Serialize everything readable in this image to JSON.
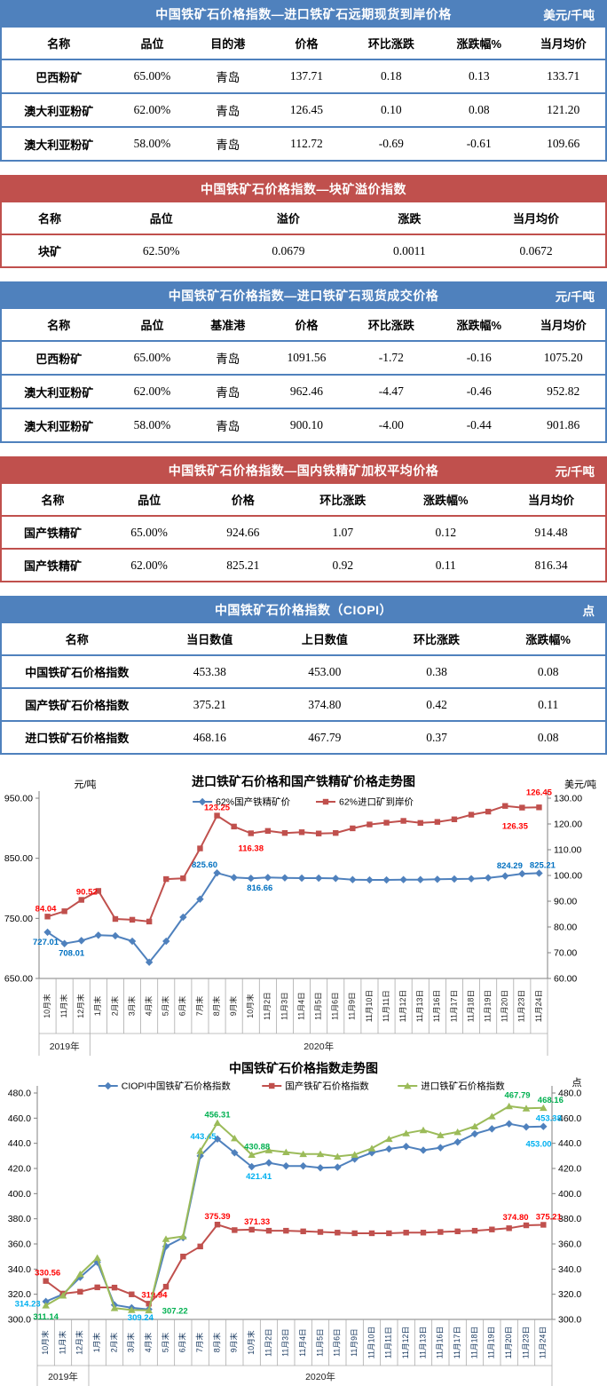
{
  "accent_colors": {
    "blue": "#4F81BD",
    "red": "#C0504D",
    "green": "#9BBB59"
  },
  "tables": [
    {
      "name": "table-import-seaborne-price",
      "accent": "#4F81BD",
      "title": "中国铁矿石价格指数—进口铁矿石远期现货到岸价格",
      "unit": "美元/千吨",
      "headers": [
        "名称",
        "品位",
        "目的港",
        "价格",
        "环比涨跌",
        "涨跌幅%",
        "当月均价"
      ],
      "rows": [
        [
          "巴西粉矿",
          "65.00%",
          "青岛",
          "137.71",
          "0.18",
          "0.13",
          "133.71"
        ],
        [
          "澳大利亚粉矿",
          "62.00%",
          "青岛",
          "126.45",
          "0.10",
          "0.08",
          "121.20"
        ],
        [
          "澳大利亚粉矿",
          "58.00%",
          "青岛",
          "112.72",
          "-0.69",
          "-0.61",
          "109.66"
        ]
      ]
    },
    {
      "name": "table-lump-premium-index",
      "accent": "#C0504D",
      "title": "中国铁矿石价格指数—块矿溢价指数",
      "unit": "",
      "headers": [
        "名称",
        "品位",
        "溢价",
        "涨跌",
        "当月均价"
      ],
      "rows": [
        [
          "块矿",
          "62.50%",
          "0.0679",
          "0.0011",
          "0.0672"
        ]
      ]
    },
    {
      "name": "table-import-spot-price",
      "accent": "#4F81BD",
      "title": "中国铁矿石价格指数—进口铁矿石现货成交价格",
      "unit": "元/千吨",
      "headers": [
        "名称",
        "品位",
        "基准港",
        "价格",
        "环比涨跌",
        "涨跌幅%",
        "当月均价"
      ],
      "rows": [
        [
          "巴西粉矿",
          "65.00%",
          "青岛",
          "1091.56",
          "-1.72",
          "-0.16",
          "1075.20"
        ],
        [
          "澳大利亚粉矿",
          "62.00%",
          "青岛",
          "962.46",
          "-4.47",
          "-0.46",
          "952.82"
        ],
        [
          "澳大利亚粉矿",
          "58.00%",
          "青岛",
          "900.10",
          "-4.00",
          "-0.44",
          "901.86"
        ]
      ]
    },
    {
      "name": "table-domestic-concentrate-price",
      "accent": "#C0504D",
      "title": "中国铁矿石价格指数—国内铁精矿加权平均价格",
      "unit": "元/千吨",
      "headers": [
        "名称",
        "品位",
        "价格",
        "环比涨跌",
        "涨跌幅%",
        "当月均价"
      ],
      "rows": [
        [
          "国产铁精矿",
          "65.00%",
          "924.66",
          "1.07",
          "0.12",
          "914.48"
        ],
        [
          "国产铁精矿",
          "62.00%",
          "825.21",
          "0.92",
          "0.11",
          "816.34"
        ]
      ]
    },
    {
      "name": "table-ciopi-index",
      "accent": "#4F81BD",
      "title": "中国铁矿石价格指数（CIOPI）",
      "unit": "点",
      "headers": [
        "名称",
        "当日数值",
        "上日数值",
        "环比涨跌",
        "涨跌幅%"
      ],
      "rows": [
        [
          "中国铁矿石价格指数",
          "453.38",
          "453.00",
          "0.38",
          "0.08"
        ],
        [
          "国产铁矿石价格指数",
          "375.21",
          "374.80",
          "0.42",
          "0.11"
        ],
        [
          "进口铁矿石价格指数",
          "468.16",
          "467.79",
          "0.37",
          "0.08"
        ]
      ]
    }
  ],
  "chart_data": [
    {
      "type": "line",
      "name": "chart-import-vs-domestic-price-trend",
      "title": "进口铁矿石价格和国产铁精矿价格走势图",
      "left_axis_label": "元/吨",
      "right_axis_label": "美元/吨",
      "left_ylim": [
        650,
        950
      ],
      "right_ylim": [
        60,
        130
      ],
      "left_ticks": [
        "950.00",
        "850.00",
        "750.00",
        "650.00"
      ],
      "right_ticks": [
        "130.00",
        "120.00",
        "110.00",
        "100.00",
        "90.00",
        "80.00",
        "70.00",
        "60.00"
      ],
      "grid": false,
      "legend_position": "top",
      "categories": [
        "10月末",
        "11月末",
        "12月末",
        "1月末",
        "2月末",
        "3月末",
        "4月末",
        "5月末",
        "6月末",
        "7月末",
        "8月末",
        "9月末",
        "10月末",
        "11月2日",
        "11月3日",
        "11月4日",
        "11月5日",
        "11月6日",
        "11月9日",
        "11月10日",
        "11月11日",
        "11月12日",
        "11月13日",
        "11月16日",
        "11月17日",
        "11月18日",
        "11月19日",
        "11月20日",
        "11月23日",
        "11月24日"
      ],
      "year_groups": [
        {
          "label": "2019年",
          "span": 3
        },
        {
          "label": "2020年",
          "span": 27
        }
      ],
      "series": [
        {
          "name": "62%国产铁精矿价",
          "color": "#4F81BD",
          "marker": "diamond",
          "axis": "left",
          "label_color": "#0070C0",
          "values": [
            727.01,
            708.01,
            713,
            722,
            721,
            712,
            677,
            712,
            752,
            782,
            825.6,
            818,
            816.66,
            818,
            817.5,
            817,
            817,
            816.5,
            814.5,
            814,
            814,
            814.5,
            814.5,
            815,
            815.5,
            816,
            817.5,
            820.5,
            824.29,
            825.21
          ],
          "point_labels": [
            {
              "i": 0,
              "v": "727.01",
              "pos": "below",
              "dx": -2
            },
            {
              "i": 1,
              "v": "708.01",
              "pos": "below",
              "dx": 8
            },
            {
              "i": 10,
              "v": "825.60",
              "pos": "above",
              "dx": -14
            },
            {
              "i": 12,
              "v": "816.66",
              "pos": "below",
              "dx": 10
            },
            {
              "i": 28,
              "v": "824.29",
              "pos": "above",
              "dx": -14
            },
            {
              "i": 29,
              "v": "825.21",
              "pos": "above",
              "dx": 4
            }
          ]
        },
        {
          "name": "62%进口矿到岸价",
          "color": "#C0504D",
          "marker": "square",
          "axis": "right",
          "label_color": "#FF0000",
          "values": [
            84.04,
            86.1,
            90.52,
            94.0,
            83.1,
            82.8,
            82.1,
            98.6,
            98.9,
            110.5,
            123.25,
            119.0,
            116.38,
            117.3,
            116.5,
            116.8,
            116.3,
            116.5,
            118.3,
            119.8,
            120.5,
            121.2,
            120.4,
            120.8,
            121.8,
            123.6,
            124.8,
            127.0,
            126.35,
            126.45
          ],
          "point_labels": [
            {
              "i": 0,
              "v": "84.04",
              "pos": "above",
              "dx": -2
            },
            {
              "i": 2,
              "v": "90.52",
              "pos": "above",
              "dx": 6
            },
            {
              "i": 10,
              "v": "123.25",
              "pos": "above"
            },
            {
              "i": 12,
              "v": "116.38",
              "pos": "below",
              "dy": 6
            },
            {
              "i": 28,
              "v": "126.35",
              "pos": "below",
              "dx": -8,
              "dy": 10
            },
            {
              "i": 29,
              "v": "126.45",
              "pos": "above",
              "dy": -8
            }
          ]
        }
      ]
    },
    {
      "type": "line",
      "name": "chart-ciopi-trend",
      "title": "中国铁矿石价格指数走势图",
      "left_axis_label": "",
      "right_axis_label": "点",
      "left_ylim": [
        300,
        480
      ],
      "right_ylim": [
        300,
        480
      ],
      "left_ticks": [
        "480.0",
        "460.0",
        "440.0",
        "420.0",
        "400.0",
        "380.0",
        "360.0",
        "340.0",
        "320.0",
        "300.0"
      ],
      "right_ticks": [
        "480.0",
        "460.0",
        "440.0",
        "420.0",
        "400.0",
        "380.0",
        "360.0",
        "340.0",
        "320.0",
        "300.0"
      ],
      "grid": false,
      "legend_position": "top",
      "categories": [
        "10月末",
        "11月末",
        "12月末",
        "1月末",
        "2月末",
        "3月末",
        "4月末",
        "5月末",
        "6月末",
        "7月末",
        "8月末",
        "9月末",
        "10月末",
        "11月2日",
        "11月3日",
        "11月4日",
        "11月5日",
        "11月6日",
        "11月9日",
        "11月10日",
        "11月11日",
        "11月12日",
        "11月13日",
        "11月16日",
        "11月17日",
        "11月18日",
        "11月19日",
        "11月20日",
        "11月23日",
        "11月24日"
      ],
      "year_groups": [
        {
          "label": "2019年",
          "span": 3
        },
        {
          "label": "2020年",
          "span": 27
        }
      ],
      "series": [
        {
          "name": "CIOPI中国铁矿石价格指数",
          "color": "#4F81BD",
          "marker": "diamond",
          "axis": "left",
          "label_color": "#00B0F0",
          "values": [
            314.23,
            320.0,
            333.5,
            345.5,
            311.5,
            309.24,
            308.0,
            358.0,
            365.0,
            430.0,
            443.45,
            432.5,
            421.41,
            424.5,
            422.0,
            422.0,
            420.5,
            421.0,
            427.5,
            432.5,
            435.5,
            437.5,
            434.5,
            436.5,
            441.0,
            447.5,
            451.5,
            455.5,
            453.0,
            453.38
          ],
          "point_labels": [
            {
              "i": 0,
              "v": "314.23",
              "pos": "left",
              "dy": 2
            },
            {
              "i": 5,
              "v": "309.24",
              "pos": "below",
              "dx": 10
            },
            {
              "i": 10,
              "v": "443.45",
              "pos": "above",
              "dx": -16,
              "dy": 6
            },
            {
              "i": 12,
              "v": "421.41",
              "pos": "below",
              "dx": 8
            },
            {
              "i": 28,
              "v": "453.00",
              "pos": "below",
              "dx": 14,
              "dy": 8
            },
            {
              "i": 29,
              "v": "453.38",
              "pos": "above",
              "dx": 6
            }
          ]
        },
        {
          "name": "国产铁矿石价格指数",
          "color": "#C0504D",
          "marker": "square",
          "axis": "left",
          "label_color": "#FF0000",
          "values": [
            330.56,
            320.5,
            322.0,
            325.5,
            325.3,
            319.94,
            312.5,
            326.0,
            350.0,
            358.0,
            375.39,
            371.0,
            371.33,
            370.5,
            370.5,
            370.0,
            369.5,
            369.0,
            368.5,
            368.5,
            368.5,
            369.0,
            369.0,
            369.5,
            370.0,
            370.5,
            371.5,
            372.5,
            374.8,
            375.21
          ],
          "point_labels": [
            {
              "i": 0,
              "v": "330.56",
              "pos": "above",
              "dx": 2
            },
            {
              "i": 5,
              "v": "319.94",
              "pos": "right",
              "dx": 4
            },
            {
              "i": 10,
              "v": "375.39",
              "pos": "above"
            },
            {
              "i": 12,
              "v": "371.33",
              "pos": "above",
              "dx": 6
            },
            {
              "i": 28,
              "v": "374.80",
              "pos": "above",
              "dx": -12
            },
            {
              "i": 29,
              "v": "375.21",
              "pos": "above",
              "dx": 6
            }
          ]
        },
        {
          "name": "进口铁矿石价格指数",
          "color": "#9BBB59",
          "marker": "triangle",
          "axis": "left",
          "label_color": "#00B050",
          "values": [
            311.14,
            319.0,
            336.0,
            349.0,
            309.0,
            307.5,
            307.22,
            364.0,
            366.0,
            434.0,
            456.31,
            444.0,
            430.88,
            434.5,
            433.0,
            431.5,
            431.5,
            429.5,
            431.0,
            436.0,
            443.5,
            448.0,
            450.5,
            446.5,
            449.0,
            453.5,
            461.5,
            469.5,
            467.79,
            468.16
          ],
          "point_labels": [
            {
              "i": 0,
              "v": "311.14",
              "pos": "below",
              "dy": 2
            },
            {
              "i": 6,
              "v": "307.22",
              "pos": "right",
              "dx": 8
            },
            {
              "i": 10,
              "v": "456.31",
              "pos": "above"
            },
            {
              "i": 12,
              "v": "430.88",
              "pos": "above",
              "dx": 6
            },
            {
              "i": 28,
              "v": "467.79",
              "pos": "above",
              "dx": -10,
              "dy": -6
            },
            {
              "i": 29,
              "v": "468.16",
              "pos": "above",
              "dx": 8
            }
          ]
        }
      ]
    }
  ]
}
